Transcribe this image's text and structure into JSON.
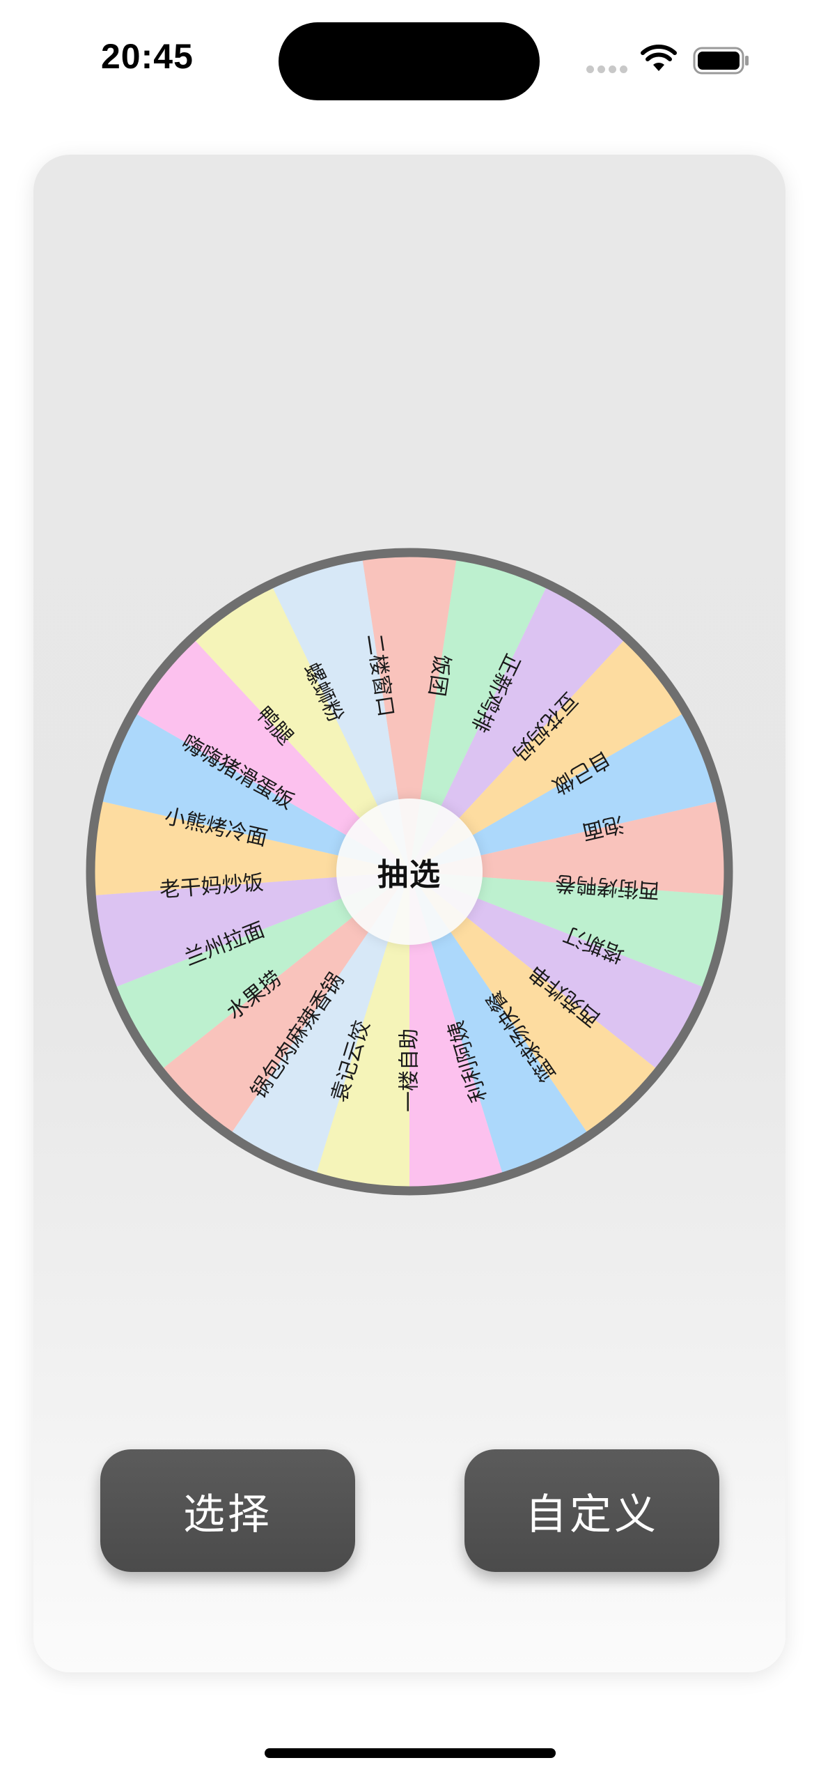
{
  "status_bar": {
    "time": "20:45",
    "icons": [
      "cellular-signal-icon",
      "wifi-icon",
      "battery-icon"
    ]
  },
  "wheel": {
    "center_label": "抽选",
    "border_color": "#6f6f6f",
    "segments": [
      {
        "label": "饭团",
        "color": "#f9c3bc"
      },
      {
        "label": "正新鸡排",
        "color": "#bdf0cf"
      },
      {
        "label": "豆花妈妈",
        "color": "#dcc3f2"
      },
      {
        "label": "自己做",
        "color": "#fddca0"
      },
      {
        "label": "泡面",
        "color": "#acd8fb"
      },
      {
        "label": "西街烤鸭卷",
        "color": "#f9c3bc"
      },
      {
        "label": "塔斯汀",
        "color": "#bdf0cf"
      },
      {
        "label": "西苑炸串",
        "color": "#dcc3f2"
      },
      {
        "label": "篮球场快餐",
        "color": "#fddca0"
      },
      {
        "label": "利利阿姨",
        "color": "#acd8fb"
      },
      {
        "label": "一楼自助",
        "color": "#fcc1ee"
      },
      {
        "label": "袁记云饺",
        "color": "#f5f4b9"
      },
      {
        "label": "锅包肉麻辣香锅",
        "color": "#d7e8f7"
      },
      {
        "label": "水果捞",
        "color": "#f9c3bc"
      },
      {
        "label": "兰州拉面",
        "color": "#bdf0cf"
      },
      {
        "label": "老干妈炒饭",
        "color": "#dcc3f2"
      },
      {
        "label": "小熊烤冷面",
        "color": "#fddca0"
      },
      {
        "label": "嗨嗨猪滑蛋饭",
        "color": "#acd8fb"
      },
      {
        "label": "鸭腿",
        "color": "#fcc1ee"
      },
      {
        "label": "螺蛳粉",
        "color": "#f5f4b9"
      },
      {
        "label": "二楼窗口",
        "color": "#d7e8f7"
      }
    ]
  },
  "buttons": {
    "select_label": "选择",
    "custom_label": "自定义"
  }
}
